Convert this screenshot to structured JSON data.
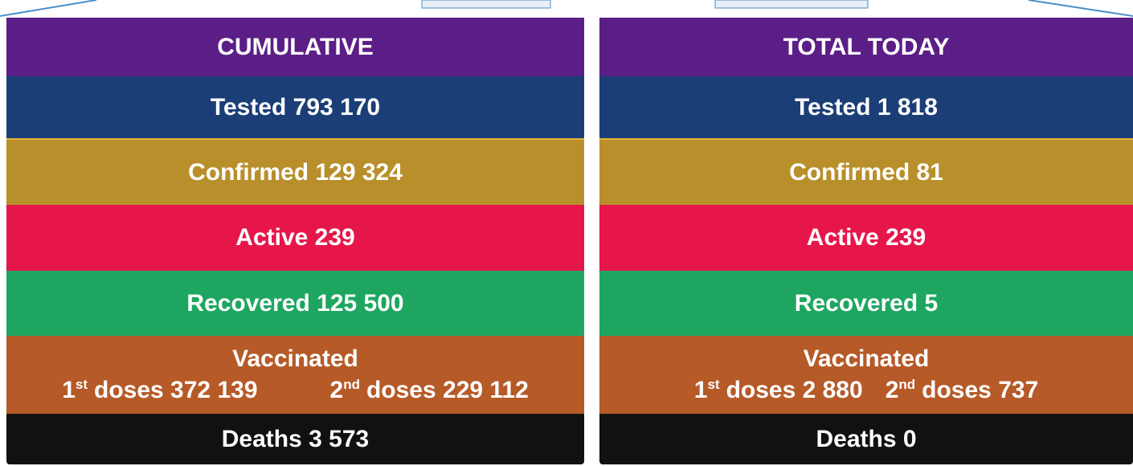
{
  "panels": [
    {
      "title": "CUMULATIVE",
      "rows": [
        "Tested 793 170",
        "Confirmed 129 324",
        "Active 239",
        "Recovered 125 500"
      ],
      "vaccinated": {
        "label": "Vaccinated",
        "doses": [
          {
            "num": "1",
            "sup": "st",
            "text": "doses 372 139"
          },
          {
            "num": "2",
            "sup": "nd",
            "text": "doses 229 112"
          }
        ]
      },
      "deaths": "Deaths 3 573"
    },
    {
      "title": "TOTAL TODAY",
      "rows": [
        "Tested 1 818",
        "Confirmed 81",
        "Active 239",
        "Recovered 5"
      ],
      "vaccinated": {
        "label": "Vaccinated",
        "doses": [
          {
            "num": "1",
            "sup": "st",
            "text": "doses 2 880"
          },
          {
            "num": "2",
            "sup": "nd",
            "text": "doses 737"
          }
        ]
      },
      "deaths": "Deaths 0"
    }
  ]
}
